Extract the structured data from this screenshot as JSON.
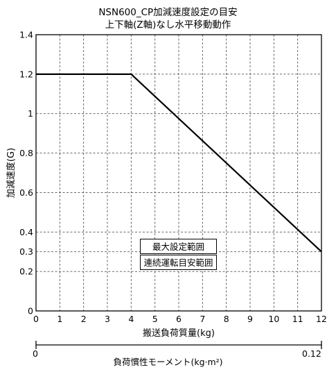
{
  "header": {
    "title_line1": "NSN600_CP加減速度設定の目安",
    "title_line2": "上下軸(Z軸)なし水平移動動作"
  },
  "chart_data": {
    "type": "line",
    "xlabel": "搬送負荷質量(kg)",
    "ylabel": "加減速度(G)",
    "xlim": [
      0,
      12
    ],
    "ylim": [
      0,
      1.4
    ],
    "x_ticks": [
      "0",
      "1",
      "2",
      "3",
      "4",
      "5",
      "6",
      "7",
      "8",
      "9",
      "10",
      "11",
      "12"
    ],
    "y_ticks": [
      {
        "value": 0,
        "label": "0"
      },
      {
        "value": 0.2,
        "label": "0.2"
      },
      {
        "value": 0.3,
        "label": "0.3"
      },
      {
        "value": 0.4,
        "label": "0.4"
      },
      {
        "value": 0.6,
        "label": "0.6"
      },
      {
        "value": 0.8,
        "label": "0.8"
      },
      {
        "value": 1.0,
        "label": "1"
      },
      {
        "value": 1.2,
        "label": "1.2"
      },
      {
        "value": 1.4,
        "label": "1.4"
      }
    ],
    "grid": true,
    "series": [
      {
        "x": [
          0,
          4,
          12
        ],
        "y": [
          1.2,
          1.2,
          0.3
        ],
        "color": "#000000"
      }
    ],
    "legend_labels": [
      "最大設定範囲",
      "連続運転目安範囲"
    ],
    "secondary_axis": {
      "label": "負荷慣性モーメント(kg·m²)",
      "min_label": "0",
      "max_label": "0.12"
    }
  }
}
